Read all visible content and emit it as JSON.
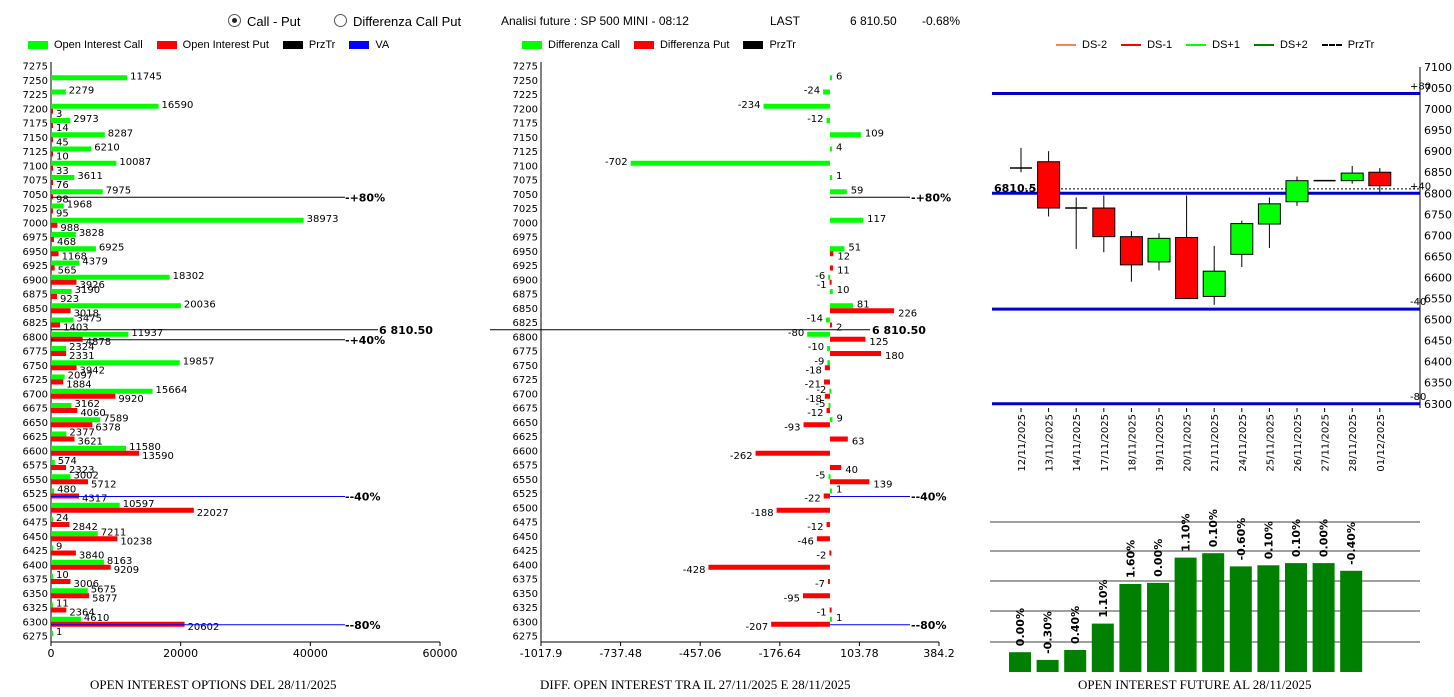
{
  "header": {
    "radio_call_put": "Call - Put",
    "radio_diff": "Differenza Call Put",
    "title": "Analisi future : SP 500 MINI - 08:12",
    "last_label": "LAST",
    "last_value": "6 810.50",
    "change": "-0.68%"
  },
  "legend1": [
    "Open Interest Call",
    "Open Interest Put",
    "PrzTr",
    "VA"
  ],
  "legend2": [
    "Differenza Call",
    "Differenza Put",
    "PrzTr"
  ],
  "legend3": [
    "DS-2",
    "DS-1",
    "DS+1",
    "DS+2",
    "PrzTr"
  ],
  "colors": {
    "call": "#00ff00",
    "put": "#ff0000",
    "blue": "#0000cc",
    "darkgreen": "#008000",
    "black": "#000000",
    "orange": "#ff7f50"
  },
  "captions": {
    "c1": "OPEN INTEREST OPTIONS DEL 28/11/2025",
    "c2": "DIFF. OPEN INTEREST TRA IL 27/11/2025 E 28/11/2025",
    "c3": "OPEN INTEREST FUTURE AL 28/11/2025"
  },
  "chart_data": [
    {
      "type": "bar",
      "orientation": "horizontal",
      "title": "OPEN INTEREST OPTIONS DEL 28/11/2025",
      "strikes": [
        "7275",
        "7250",
        "7225",
        "7200",
        "7175",
        "7150",
        "7125",
        "7100",
        "7075",
        "7050",
        "7025",
        "7000",
        "6975",
        "6950",
        "6925",
        "6900",
        "6875",
        "6850",
        "6825",
        "6800",
        "6775",
        "6750",
        "6725",
        "6700",
        "6675",
        "6650",
        "6625",
        "6600",
        "6575",
        "6550",
        "6525",
        "6500",
        "6475",
        "6450",
        "6425",
        "6400",
        "6375",
        "6350",
        "6325",
        "6300",
        "6275"
      ],
      "series": [
        {
          "name": "Open Interest Call",
          "values": [
            null,
            11745,
            2279,
            16590,
            2973,
            8287,
            6210,
            10087,
            3611,
            7975,
            1968,
            38973,
            3828,
            6925,
            4379,
            18302,
            3190,
            20036,
            3475,
            11937,
            2324,
            19857,
            2097,
            15664,
            3162,
            7589,
            2377,
            11580,
            574,
            3002,
            480,
            10597,
            24,
            7211,
            9,
            8163,
            10,
            5675,
            11,
            4610,
            1
          ]
        },
        {
          "name": "Open Interest Put",
          "values": [
            null,
            null,
            null,
            3,
            14,
            45,
            10,
            33,
            76,
            98,
            95,
            988,
            468,
            1168,
            565,
            3926,
            923,
            3018,
            1403,
            4878,
            2331,
            3942,
            1884,
            9920,
            4060,
            6378,
            3621,
            13590,
            2323,
            5712,
            4317,
            22027,
            2842,
            10238,
            3840,
            9209,
            3006,
            5877,
            2364,
            20602,
            null
          ]
        }
      ],
      "xticks": [
        "0",
        "20000",
        "40000",
        "60000"
      ],
      "xlim": [
        0,
        60000
      ],
      "markers": [
        {
          "strike": "7050",
          "label": "+80%"
        },
        {
          "strike": "6800",
          "label": "+40%"
        },
        {
          "strike": "6525",
          "label": "-40%"
        },
        {
          "strike": "6300",
          "label": "-80%"
        }
      ],
      "price_label": "6 810.50",
      "price": 6810.5
    },
    {
      "type": "bar",
      "orientation": "horizontal",
      "title": "DIFF. OPEN INTEREST TRA IL 27/11/2025 E 28/11/2025",
      "strikes": [
        "7275",
        "7250",
        "7225",
        "7200",
        "7175",
        "7150",
        "7125",
        "7100",
        "7075",
        "7050",
        "7025",
        "7000",
        "6975",
        "6950",
        "6925",
        "6900",
        "6875",
        "6850",
        "6825",
        "6800",
        "6775",
        "6750",
        "6725",
        "6700",
        "6675",
        "6650",
        "6625",
        "6600",
        "6575",
        "6550",
        "6525",
        "6500",
        "6475",
        "6450",
        "6425",
        "6400",
        "6375",
        "6350",
        "6325",
        "6300",
        "6275"
      ],
      "bars": [
        {
          "strike": "7250",
          "value": 6,
          "series": "call"
        },
        {
          "strike": "7225",
          "value": -24,
          "series": "call"
        },
        {
          "strike": "7200",
          "value": -234,
          "series": "call"
        },
        {
          "strike": "7175",
          "value": -12,
          "series": "call"
        },
        {
          "strike": "7150",
          "value": 109,
          "series": "call"
        },
        {
          "strike": "7125",
          "value": 4,
          "series": "call"
        },
        {
          "strike": "7100",
          "value": -702,
          "series": "call"
        },
        {
          "strike": "7075",
          "value": 1,
          "series": "call"
        },
        {
          "strike": "7050",
          "value": 59,
          "series": "call"
        },
        {
          "strike": "7000",
          "value": 117,
          "series": "call"
        },
        {
          "strike": "6950",
          "value": 51,
          "series": "call"
        },
        {
          "strike": "6950",
          "value": 12,
          "series": "put"
        },
        {
          "strike": "6925",
          "value": 11,
          "series": "put"
        },
        {
          "strike": "6900",
          "value": -6,
          "series": "call"
        },
        {
          "strike": "6900",
          "value": -1,
          "series": "put"
        },
        {
          "strike": "6875",
          "value": 10,
          "series": "call"
        },
        {
          "strike": "6850",
          "value": 81,
          "series": "call"
        },
        {
          "strike": "6850",
          "value": 226,
          "series": "put"
        },
        {
          "strike": "6825",
          "value": -14,
          "series": "call"
        },
        {
          "strike": "6825",
          "value": 2,
          "series": "put"
        },
        {
          "strike": "6800",
          "value": -80,
          "series": "call"
        },
        {
          "strike": "6800",
          "value": 125,
          "series": "put"
        },
        {
          "strike": "6775",
          "value": -10,
          "series": "call"
        },
        {
          "strike": "6775",
          "value": 180,
          "series": "put"
        },
        {
          "strike": "6750",
          "value": -9,
          "series": "call"
        },
        {
          "strike": "6750",
          "value": -18,
          "series": "put"
        },
        {
          "strike": "6725",
          "value": -21,
          "series": "put"
        },
        {
          "strike": "6700",
          "value": -2,
          "series": "call"
        },
        {
          "strike": "6700",
          "value": -18,
          "series": "put"
        },
        {
          "strike": "6675",
          "value": -5,
          "series": "call"
        },
        {
          "strike": "6675",
          "value": -12,
          "series": "put"
        },
        {
          "strike": "6650",
          "value": 9,
          "series": "call"
        },
        {
          "strike": "6650",
          "value": -93,
          "series": "put"
        },
        {
          "strike": "6625",
          "value": 63,
          "series": "put"
        },
        {
          "strike": "6600",
          "value": -262,
          "series": "put"
        },
        {
          "strike": "6575",
          "value": 40,
          "series": "put"
        },
        {
          "strike": "6550",
          "value": -5,
          "series": "call"
        },
        {
          "strike": "6550",
          "value": 139,
          "series": "put"
        },
        {
          "strike": "6525",
          "value": 1,
          "series": "call"
        },
        {
          "strike": "6525",
          "value": -22,
          "series": "put"
        },
        {
          "strike": "6500",
          "value": -188,
          "series": "put"
        },
        {
          "strike": "6475",
          "value": -12,
          "series": "put"
        },
        {
          "strike": "6450",
          "value": -46,
          "series": "put"
        },
        {
          "strike": "6425",
          "value": -2,
          "series": "put"
        },
        {
          "strike": "6400",
          "value": -428,
          "series": "put"
        },
        {
          "strike": "6375",
          "value": -7,
          "series": "put"
        },
        {
          "strike": "6350",
          "value": -95,
          "series": "put"
        },
        {
          "strike": "6325",
          "value": -1,
          "series": "put"
        },
        {
          "strike": "6300",
          "value": 1,
          "series": "call"
        },
        {
          "strike": "6300",
          "value": -207,
          "series": "put"
        }
      ],
      "xticks": [
        "-1017.9",
        "-737.48",
        "-457.06",
        "-176.64",
        "103.78",
        "384.2"
      ],
      "xlim": [
        -1017.9,
        384.2
      ],
      "markers": [
        {
          "strike": "7050",
          "label": "+80%"
        },
        {
          "strike": "6525",
          "label": "-40%"
        },
        {
          "strike": "6300",
          "label": "-80%"
        }
      ],
      "price_label": "6 810.50",
      "price": 6810.5
    },
    {
      "type": "candlestick",
      "dates": [
        "12/11/2025",
        "13/11/2025",
        "14/11/2025",
        "17/11/2025",
        "18/11/2025",
        "19/11/2025",
        "20/11/2025",
        "21/11/2025",
        "24/11/2025",
        "25/11/2025",
        "26/11/2025",
        "27/11/2025",
        "28/11/2025",
        "01/12/2025"
      ],
      "candles": [
        {
          "open": 6860,
          "close": 6860,
          "high": 6908,
          "low": 6850
        },
        {
          "open": 6875,
          "close": 6765,
          "high": 6900,
          "low": 6745
        },
        {
          "open": 6765,
          "close": 6765,
          "high": 6790,
          "low": 6668
        },
        {
          "open": 6765,
          "close": 6697,
          "high": 6795,
          "low": 6660
        },
        {
          "open": 6697,
          "close": 6630,
          "high": 6710,
          "low": 6590
        },
        {
          "open": 6637,
          "close": 6693,
          "high": 6705,
          "low": 6617
        },
        {
          "open": 6695,
          "close": 6550,
          "high": 6795,
          "low": 6550
        },
        {
          "open": 6555,
          "close": 6615,
          "high": 6675,
          "low": 6535
        },
        {
          "open": 6655,
          "close": 6728,
          "high": 6735,
          "low": 6625
        },
        {
          "open": 6727,
          "close": 6775,
          "high": 6790,
          "low": 6670
        },
        {
          "open": 6780,
          "close": 6830,
          "high": 6840,
          "low": 6770
        },
        {
          "open": 6830,
          "close": 6830,
          "high": 6830,
          "low": 6830
        },
        {
          "open": 6830,
          "close": 6848,
          "high": 6865,
          "low": 6823
        },
        {
          "open": 6850,
          "close": 6818,
          "high": 6860,
          "low": 6800
        }
      ],
      "yticks": [
        "7100",
        "7050",
        "7000",
        "6950",
        "6900",
        "6850",
        "6800",
        "6750",
        "6700",
        "6650",
        "6600",
        "6550",
        "6500",
        "6450",
        "6400",
        "6350",
        "6300"
      ],
      "ylim": [
        6290,
        7100
      ],
      "levels": [
        {
          "value": 7037,
          "label": "+80"
        },
        {
          "value": 6800,
          "label": "+40"
        },
        {
          "value": 6525,
          "label": "-40"
        },
        {
          "value": 6300,
          "label": "-80"
        }
      ],
      "price_label": "6810.5",
      "price": 6810.5
    },
    {
      "type": "bar",
      "title": "OPEN INTEREST FUTURE AL 28/11/2025",
      "categories": [
        "12/11/2025",
        "13/11/2025",
        "14/11/2025",
        "17/11/2025",
        "18/11/2025",
        "19/11/2025",
        "20/11/2025",
        "21/11/2025",
        "24/11/2025",
        "25/11/2025",
        "26/11/2025",
        "27/11/2025",
        "28/11/2025",
        "01/12/2025"
      ],
      "values": [
        18,
        11,
        20,
        44,
        80,
        81,
        104,
        108,
        96,
        97,
        99,
        99,
        92
      ],
      "labels": [
        "0.00%",
        "-0.30%",
        "0.40%",
        "1.10%",
        "1.60%",
        "0.00%",
        "1.10%",
        "0.10%",
        "-0.60%",
        "0.10%",
        "0.10%",
        "0.00%",
        "-0.40%"
      ]
    }
  ]
}
